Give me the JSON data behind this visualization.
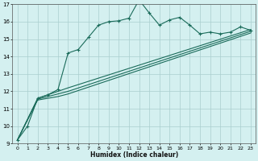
{
  "xlabel": "Humidex (Indice chaleur)",
  "bg_color": "#d4f0f0",
  "grid_color": "#aacece",
  "line_color": "#1a6b5a",
  "xlim": [
    -0.5,
    23.5
  ],
  "ylim": [
    9,
    17
  ],
  "xticks": [
    0,
    1,
    2,
    3,
    4,
    5,
    6,
    7,
    8,
    9,
    10,
    11,
    12,
    13,
    14,
    15,
    16,
    17,
    18,
    19,
    20,
    21,
    22,
    23
  ],
  "yticks": [
    9,
    10,
    11,
    12,
    13,
    14,
    15,
    16,
    17
  ],
  "series1_x": [
    0,
    1,
    2,
    3,
    4,
    5,
    6,
    7,
    8,
    9,
    10,
    11,
    12,
    13,
    14,
    15,
    16,
    17,
    18,
    19,
    20,
    21,
    22,
    23
  ],
  "series1_y": [
    9.2,
    10.0,
    11.6,
    11.8,
    12.1,
    14.2,
    14.4,
    15.1,
    15.8,
    16.0,
    16.05,
    16.2,
    17.25,
    16.5,
    15.8,
    16.1,
    16.25,
    15.8,
    15.3,
    15.4,
    15.3,
    15.4,
    15.7,
    15.5
  ],
  "series2_x": [
    0,
    2,
    3,
    4,
    5,
    23
  ],
  "series2_y": [
    9.2,
    11.6,
    11.8,
    12.0,
    12.2,
    15.55
  ],
  "series3_x": [
    0,
    2,
    3,
    4,
    5,
    23
  ],
  "series3_y": [
    9.2,
    11.55,
    11.7,
    11.85,
    12.0,
    15.45
  ],
  "series4_x": [
    0,
    2,
    3,
    4,
    5,
    23
  ],
  "series4_y": [
    9.2,
    11.5,
    11.6,
    11.7,
    11.85,
    15.35
  ]
}
